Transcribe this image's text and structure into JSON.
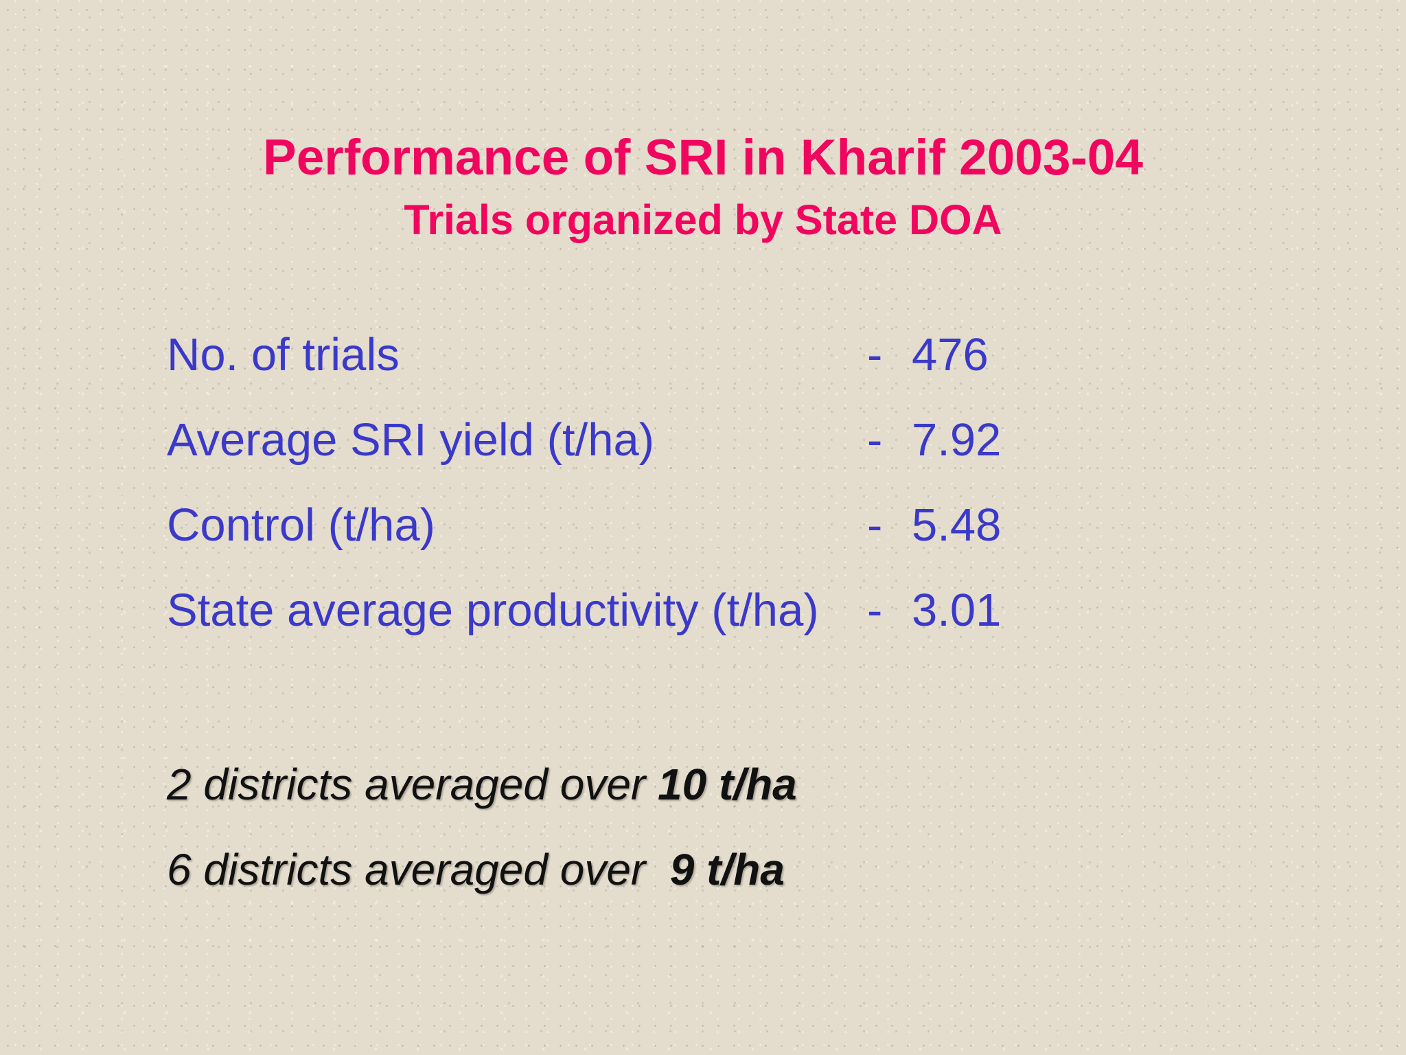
{
  "slide": {
    "title": "Performance of SRI in Kharif 2003-04",
    "subtitle": "Trials organized by State DOA",
    "stats": [
      {
        "label": "No. of trials",
        "dash": "-",
        "value": "476"
      },
      {
        "label": "Average SRI yield (t/ha)",
        "dash": "-",
        "value": "7.92"
      },
      {
        "label": "Control (t/ha)",
        "dash": "-",
        "value": "5.48"
      },
      {
        "label": "State average productivity (t/ha)",
        "dash": "-",
        "value": "3.01"
      }
    ],
    "notes": [
      {
        "text": "2 districts averaged over ",
        "emphasis": "10 t/ha"
      },
      {
        "text": "6 districts averaged over  ",
        "emphasis": "9 t/ha"
      }
    ],
    "colors": {
      "title": "#f0065e",
      "body": "#3a39c9",
      "notes": "#111111",
      "background": "#e4dccd"
    }
  }
}
